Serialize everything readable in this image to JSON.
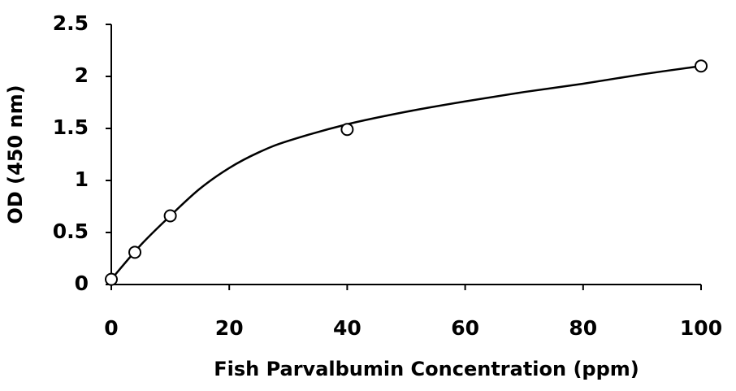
{
  "chart_data": {
    "type": "scatter",
    "xlabel": "Fish Parvalbumin Concentration (ppm)",
    "ylabel": "OD (450 nm)",
    "xlim": [
      0,
      100
    ],
    "ylim": [
      0,
      2.5
    ],
    "xticks": [
      0,
      20,
      40,
      60,
      80,
      100
    ],
    "yticks": [
      0,
      0.5,
      1,
      1.5,
      2,
      2.5
    ],
    "series": [
      {
        "type": "scatter",
        "color": "#000000",
        "x": [
          0,
          4,
          10,
          40,
          100
        ],
        "values": [
          0.05,
          0.31,
          0.66,
          1.49,
          2.1
        ]
      },
      {
        "type": "line",
        "color": "#000000",
        "x": [
          0,
          5,
          10,
          15,
          20,
          25,
          30,
          40,
          50,
          60,
          70,
          80,
          90,
          100
        ],
        "values": [
          0.05,
          0.38,
          0.66,
          0.92,
          1.12,
          1.27,
          1.38,
          1.54,
          1.66,
          1.76,
          1.85,
          1.93,
          2.02,
          2.1
        ]
      }
    ]
  }
}
